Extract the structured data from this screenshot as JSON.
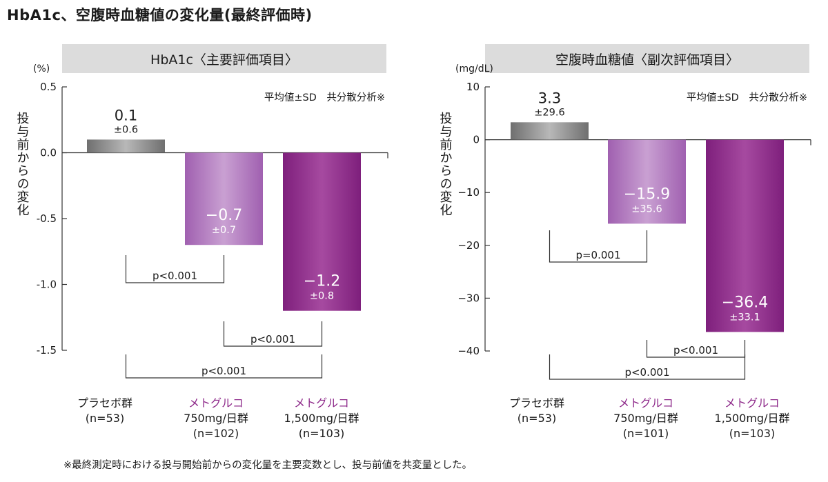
{
  "page_title": "HbA1c、空腹時血糖値の変化量(最終評価時)",
  "footnote": "※最終測定時における投与開始前からの変化量を主要変数とし、投与前値を共変量とした。",
  "chart_data": [
    {
      "type": "bar",
      "title": "HbA1c〈主要評価項目〉",
      "unit": "(%)",
      "ylabel": "投与前からの変化",
      "stats_note": "平均値±SD　共分散分析※",
      "ylim": [
        -1.5,
        0.5
      ],
      "yticks": [
        0.5,
        0.0,
        -0.5,
        -1.0,
        -1.5
      ],
      "ytick_labels": [
        "0.5",
        "0.0",
        "-0.5",
        "-1.0",
        "-1.5"
      ],
      "categories": [
        {
          "lines": [
            "プラセボ群",
            "(n=53)"
          ],
          "brand": false
        },
        {
          "lines": [
            "メトグルコ",
            "750mg/日群",
            "(n=102)"
          ],
          "brand": true
        },
        {
          "lines": [
            "メトグルコ",
            "1,500mg/日群",
            "(n=103)"
          ],
          "brand": true
        }
      ],
      "values": [
        0.1,
        -0.7,
        -1.2
      ],
      "value_labels": [
        "0.1",
        "−0.7",
        "−1.2"
      ],
      "sd_labels": [
        "±0.6",
        "±0.7",
        "±0.8"
      ],
      "comparisons": [
        {
          "from": 0,
          "to": 1,
          "label": "p<0.001"
        },
        {
          "from": 1,
          "to": 2,
          "label": "p<0.001"
        },
        {
          "from": 0,
          "to": 2,
          "label": "p<0.001"
        }
      ]
    },
    {
      "type": "bar",
      "title": "空腹時血糖値〈副次評価項目〉",
      "unit": "(mg/dL)",
      "ylabel": "投与前からの変化",
      "stats_note": "平均値±SD　共分散分析※",
      "ylim": [
        -40,
        10
      ],
      "yticks": [
        10,
        0,
        -10,
        -20,
        -30,
        -40
      ],
      "ytick_labels": [
        "10",
        "0",
        "−10",
        "−20",
        "−30",
        "−40"
      ],
      "categories": [
        {
          "lines": [
            "プラセボ群",
            "(n=53)"
          ],
          "brand": false
        },
        {
          "lines": [
            "メトグルコ",
            "750mg/日群",
            "(n=101)"
          ],
          "brand": true
        },
        {
          "lines": [
            "メトグルコ",
            "1,500mg/日群",
            "(n=103)"
          ],
          "brand": true
        }
      ],
      "values": [
        3.3,
        -15.9,
        -36.4
      ],
      "value_labels": [
        "3.3",
        "−15.9",
        "−36.4"
      ],
      "sd_labels": [
        "±29.6",
        "±35.6",
        "±33.1"
      ],
      "comparisons": [
        {
          "from": 0,
          "to": 1,
          "label": "p=0.001"
        },
        {
          "from": 1,
          "to": 2,
          "label": "p<0.001"
        },
        {
          "from": 0,
          "to": 2,
          "label": "p<0.001"
        }
      ]
    }
  ],
  "colors": {
    "header_bg": "#dcdcdc",
    "placebo_bar": "#8c8c8c",
    "dose_low_bar": "#b57fc0",
    "dose_high_bar": "#96308f",
    "brand_text": "#8e2a8a",
    "axis": "#333333"
  }
}
